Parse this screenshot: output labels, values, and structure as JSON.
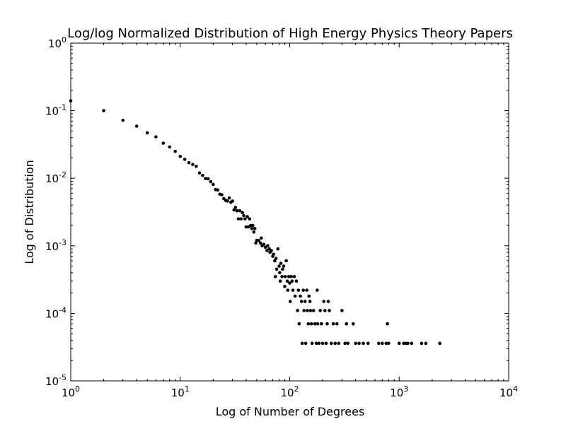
{
  "chart_data": {
    "type": "scatter",
    "title": "Log/log Normalized Distribution of High Energy Physics Theory Papers",
    "xlabel": "Log of Number of Degrees",
    "ylabel": "Log of Distribution",
    "x_scale": "log",
    "y_scale": "log",
    "xlim": [
      1,
      10000
    ],
    "ylim": [
      1e-05,
      1
    ],
    "x_ticks": [
      {
        "value": 1,
        "base": "10",
        "exp": "0"
      },
      {
        "value": 10,
        "base": "10",
        "exp": "1"
      },
      {
        "value": 100,
        "base": "10",
        "exp": "2"
      },
      {
        "value": 1000,
        "base": "10",
        "exp": "3"
      },
      {
        "value": 10000,
        "base": "10",
        "exp": "4"
      }
    ],
    "y_ticks": [
      {
        "value": 1,
        "base": "10",
        "exp": "0"
      },
      {
        "value": 0.1,
        "base": "10",
        "exp": "-1"
      },
      {
        "value": 0.01,
        "base": "10",
        "exp": "-2"
      },
      {
        "value": 0.001,
        "base": "10",
        "exp": "-3"
      },
      {
        "value": 0.0001,
        "base": "10",
        "exp": "-4"
      },
      {
        "value": 1e-05,
        "base": "10",
        "exp": "-5"
      }
    ],
    "grid": false,
    "legend": "none",
    "marker_color": "#000000",
    "series": [
      {
        "points": [
          [
            1,
            0.14
          ],
          [
            2,
            0.1
          ],
          [
            3,
            0.072
          ],
          [
            4,
            0.059
          ],
          [
            5,
            0.047
          ],
          [
            6,
            0.041
          ],
          [
            7,
            0.033
          ],
          [
            8,
            0.029
          ],
          [
            9,
            0.025
          ],
          [
            10,
            0.021
          ],
          [
            11,
            0.019
          ],
          [
            12,
            0.017
          ],
          [
            13,
            0.016
          ],
          [
            14,
            0.015
          ],
          [
            15,
            0.012
          ],
          [
            16,
            0.011
          ],
          [
            17,
            0.0099
          ],
          [
            18,
            0.0098
          ],
          [
            19,
            0.0089
          ],
          [
            20,
            0.0081
          ],
          [
            21,
            0.0068
          ],
          [
            22,
            0.0067
          ],
          [
            23,
            0.0058
          ],
          [
            24,
            0.0057
          ],
          [
            25,
            0.005
          ],
          [
            26,
            0.0047
          ],
          [
            27,
            0.0046
          ],
          [
            28,
            0.0051
          ],
          [
            29,
            0.0044
          ],
          [
            30,
            0.0046
          ],
          [
            31,
            0.0034
          ],
          [
            32,
            0.0037
          ],
          [
            33,
            0.0033
          ],
          [
            34,
            0.0025
          ],
          [
            35,
            0.0033
          ],
          [
            36,
            0.0025
          ],
          [
            37,
            0.0031
          ],
          [
            38,
            0.0028
          ],
          [
            39,
            0.0025
          ],
          [
            40,
            0.0019
          ],
          [
            41,
            0.0027
          ],
          [
            42,
            0.0019
          ],
          [
            43,
            0.0025
          ],
          [
            44,
            0.002
          ],
          [
            45,
            0.0018
          ],
          [
            46,
            0.002
          ],
          [
            47,
            0.0016
          ],
          [
            48,
            0.0018
          ],
          [
            49,
            0.0011
          ],
          [
            50,
            0.0012
          ],
          [
            52,
            0.0012
          ],
          [
            54,
            0.0011
          ],
          [
            55,
            0.0013
          ],
          [
            56,
            0.001
          ],
          [
            58,
            0.00105
          ],
          [
            60,
            0.00095
          ],
          [
            62,
            0.00085
          ],
          [
            63,
            0.001
          ],
          [
            65,
            0.0009
          ],
          [
            66,
            0.0008
          ],
          [
            68,
            0.00085
          ],
          [
            70,
            0.0007
          ],
          [
            71,
            0.00075
          ],
          [
            73,
            0.0006
          ],
          [
            74,
            0.00035
          ],
          [
            75,
            0.00065
          ],
          [
            76,
            0.00045
          ],
          [
            78,
            0.0009
          ],
          [
            80,
            0.0005
          ],
          [
            81,
            0.0004
          ],
          [
            82,
            0.0003
          ],
          [
            83,
            0.00055
          ],
          [
            85,
            0.00035
          ],
          [
            86,
            0.00045
          ],
          [
            88,
            0.0005
          ],
          [
            90,
            0.00025
          ],
          [
            91,
            0.00035
          ],
          [
            93,
            0.0006
          ],
          [
            95,
            0.0003
          ],
          [
            96,
            0.00022
          ],
          [
            98,
            0.00035
          ],
          [
            100,
            0.00028
          ],
          [
            101,
            0.00015
          ],
          [
            103,
            0.00035
          ],
          [
            105,
            0.0003
          ],
          [
            107,
            0.00022
          ],
          [
            110,
            0.00035
          ],
          [
            112,
            0.00018
          ],
          [
            115,
            0.0003
          ],
          [
            118,
            0.00011
          ],
          [
            120,
            0.00022
          ],
          [
            122,
            7e-05
          ],
          [
            125,
            0.00018
          ],
          [
            128,
            0.00015
          ],
          [
            130,
            3.6e-05
          ],
          [
            133,
            0.00022
          ],
          [
            135,
            0.00011
          ],
          [
            138,
            0.00015
          ],
          [
            140,
            3.6e-05
          ],
          [
            143,
            0.00022
          ],
          [
            145,
            0.00011
          ],
          [
            148,
            7e-05
          ],
          [
            150,
            0.00018
          ],
          [
            153,
            0.00015
          ],
          [
            155,
            0.00011
          ],
          [
            158,
            7e-05
          ],
          [
            160,
            3.6e-05
          ],
          [
            165,
            0.00011
          ],
          [
            170,
            7e-05
          ],
          [
            175,
            3.6e-05
          ],
          [
            178,
            0.00022
          ],
          [
            180,
            7e-05
          ],
          [
            185,
            3.6e-05
          ],
          [
            190,
            0.00011
          ],
          [
            195,
            7e-05
          ],
          [
            200,
            3.6e-05
          ],
          [
            205,
            0.00015
          ],
          [
            210,
            0.00011
          ],
          [
            215,
            3.6e-05
          ],
          [
            220,
            7e-05
          ],
          [
            225,
            0.00015
          ],
          [
            230,
            0.00011
          ],
          [
            240,
            3.6e-05
          ],
          [
            250,
            7e-05
          ],
          [
            260,
            3.6e-05
          ],
          [
            270,
            7e-05
          ],
          [
            280,
            3.6e-05
          ],
          [
            300,
            0.00011
          ],
          [
            320,
            3.6e-05
          ],
          [
            330,
            7e-05
          ],
          [
            340,
            3.6e-05
          ],
          [
            380,
            7e-05
          ],
          [
            400,
            3.6e-05
          ],
          [
            430,
            3.6e-05
          ],
          [
            470,
            3.6e-05
          ],
          [
            520,
            3.6e-05
          ],
          [
            650,
            3.6e-05
          ],
          [
            700,
            3.6e-05
          ],
          [
            760,
            3.6e-05
          ],
          [
            780,
            7e-05
          ],
          [
            800,
            3.6e-05
          ],
          [
            1000,
            3.6e-05
          ],
          [
            1100,
            3.6e-05
          ],
          [
            1150,
            3.6e-05
          ],
          [
            1200,
            3.6e-05
          ],
          [
            1300,
            3.6e-05
          ],
          [
            1600,
            3.6e-05
          ],
          [
            1750,
            3.6e-05
          ],
          [
            2350,
            3.6e-05
          ]
        ]
      }
    ]
  }
}
